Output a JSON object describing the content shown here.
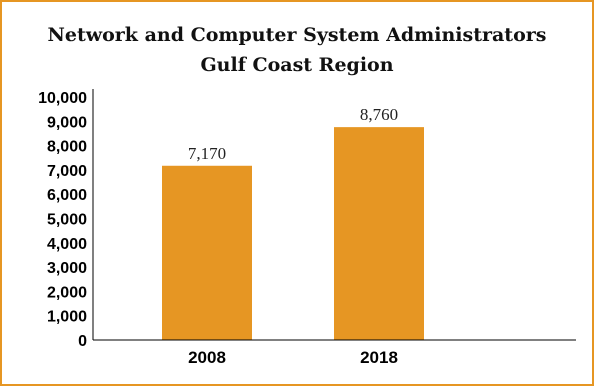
{
  "chart_data": {
    "type": "bar",
    "title": "Network and Computer System Administrators",
    "subtitle": "Gulf Coast Region",
    "categories": [
      "2008",
      "2018"
    ],
    "values": [
      7170,
      8760
    ],
    "data_labels": [
      "7,170",
      "8,760"
    ],
    "ylim": [
      0,
      10000
    ],
    "yticks": [
      0,
      1000,
      2000,
      3000,
      4000,
      5000,
      6000,
      7000,
      8000,
      9000,
      10000
    ],
    "ytick_labels": [
      "0",
      "1,000",
      "2,000",
      "3,000",
      "4,000",
      "5,000",
      "6,000",
      "7,000",
      "8,000",
      "9,000",
      "10,000"
    ],
    "xlabel": "",
    "ylabel": "",
    "grid": false,
    "legend": "none",
    "bar_color": "#e69623",
    "frame_color": "#e69623"
  }
}
